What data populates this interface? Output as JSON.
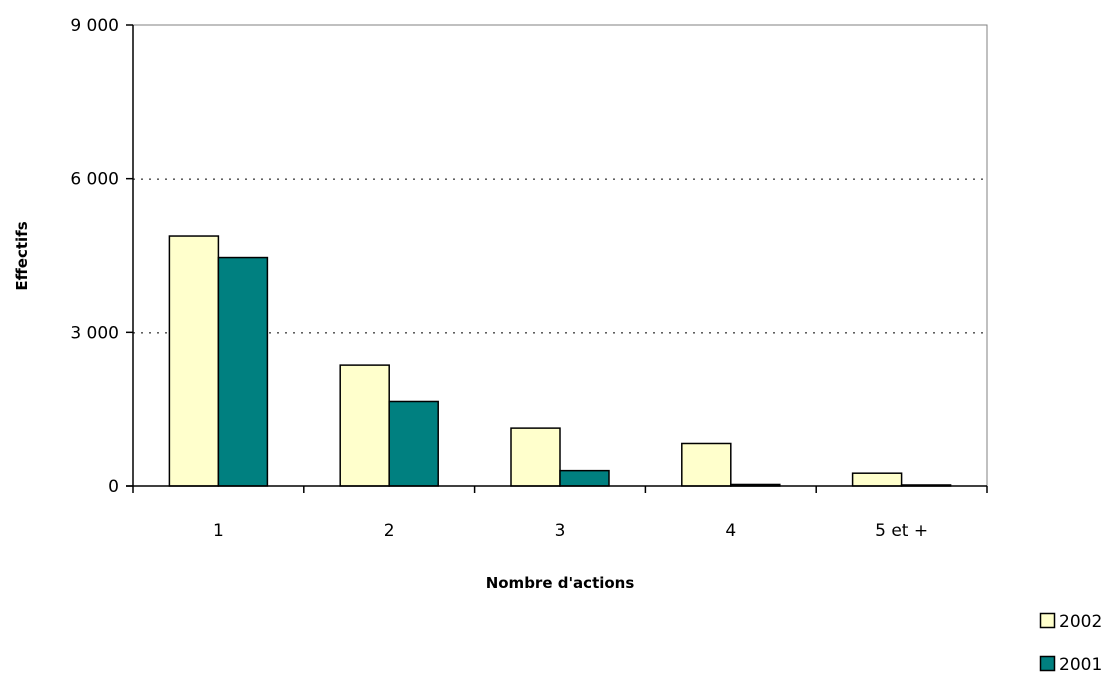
{
  "chart_data": {
    "type": "bar",
    "title": "",
    "xlabel": "Nombre d'actions",
    "ylabel": "Effectifs",
    "categories": [
      "1",
      "2",
      "3",
      "4",
      "5 et +"
    ],
    "series": [
      {
        "name": "2002",
        "values": [
          4880,
          2360,
          1130,
          830,
          250
        ],
        "color": "#ffffcc"
      },
      {
        "name": "2001",
        "values": [
          4460,
          1650,
          300,
          30,
          20
        ],
        "color": "#008080"
      }
    ],
    "ylim": [
      0,
      9000
    ],
    "yticks": [
      0,
      3000,
      6000,
      9000
    ],
    "ytick_labels": [
      "0",
      "3 000",
      "6 000",
      "9 000"
    ],
    "grid": true,
    "grid_style": "dotted",
    "legend_position": "bottom-right",
    "colors": {
      "axis": "#000000",
      "grid": "#000000",
      "bar_stroke": "#000000"
    }
  }
}
